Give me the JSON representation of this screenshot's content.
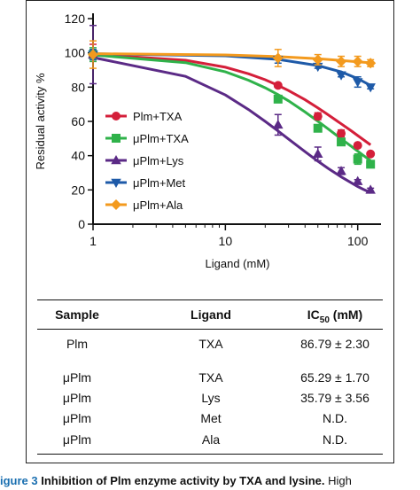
{
  "chart_data": {
    "type": "line",
    "title": "",
    "xlabel": "Ligand (mM)",
    "ylabel": "Residual activity %",
    "xscale": "log",
    "xlim": [
      1,
      150
    ],
    "ylim": [
      0,
      120
    ],
    "x_ticks": [
      "1",
      "10",
      "100"
    ],
    "y_ticks": [
      "0",
      "20",
      "40",
      "60",
      "80",
      "100",
      "120"
    ],
    "legend_position": "center-right",
    "series": [
      {
        "name": "Plm+TXA",
        "color": "#d41f3a",
        "marker": "circle",
        "x": [
          1,
          25,
          50,
          75,
          100,
          125
        ],
        "y": [
          100,
          81,
          63,
          53,
          46,
          41
        ],
        "err": [
          5,
          1,
          2,
          2,
          1,
          1
        ],
        "curve_x": [
          1,
          5,
          10,
          15,
          20,
          25,
          30,
          40,
          50,
          60,
          75,
          90,
          100,
          110,
          125
        ],
        "curve_y": [
          99.1,
          95.7,
          91.6,
          87.8,
          84.3,
          81.0,
          78.0,
          72.6,
          67.9,
          63.8,
          58.6,
          54.3,
          51.7,
          49.4,
          46.3
        ]
      },
      {
        "name": "μPlm+TXA",
        "color": "#2fb24a",
        "marker": "square",
        "x": [
          1,
          25,
          50,
          75,
          100,
          125
        ],
        "y": [
          99,
          73,
          56,
          48,
          38,
          35
        ],
        "err": [
          4,
          2,
          2,
          2,
          3,
          1
        ],
        "curve_x": [
          1,
          5,
          10,
          15,
          20,
          25,
          30,
          40,
          50,
          60,
          75,
          90,
          100,
          110,
          125
        ],
        "curve_y": [
          98.8,
          94.3,
          88.9,
          84.0,
          79.6,
          75.6,
          72.0,
          65.5,
          60.1,
          55.5,
          49.8,
          45.3,
          42.6,
          40.2,
          37.1
        ]
      },
      {
        "name": "μPlm+Lys",
        "color": "#5b2a86",
        "marker": "triangle-up",
        "x": [
          1,
          25,
          50,
          75,
          100,
          125
        ],
        "y": [
          99,
          58,
          41,
          31,
          25,
          20
        ],
        "err": [
          17,
          6,
          4,
          2,
          1,
          1
        ],
        "curve_x": [
          1,
          5,
          10,
          15,
          20,
          25,
          30,
          40,
          50,
          60,
          75,
          90,
          100,
          110,
          125
        ],
        "curve_y": [
          97.3,
          86.3,
          75.4,
          66.9,
          60.0,
          54.4,
          49.7,
          42.3,
          36.8,
          32.5,
          27.6,
          24.0,
          22.0,
          20.4,
          18.4
        ]
      },
      {
        "name": "μPlm+Met",
        "color": "#1e5aa8",
        "marker": "triangle-down",
        "x": [
          1,
          25,
          50,
          75,
          100,
          125
        ],
        "y": [
          99,
          96,
          92,
          87,
          83,
          80
        ],
        "err": [
          3,
          2,
          1,
          1,
          3,
          1
        ],
        "curve_x": [
          1,
          10,
          25,
          50,
          75,
          100,
          125
        ],
        "curve_y": [
          99.5,
          98.3,
          96.2,
          92.6,
          88.9,
          85.0,
          81.0
        ]
      },
      {
        "name": "μPlm+Ala",
        "color": "#f39a1e",
        "marker": "diamond",
        "x": [
          1,
          25,
          50,
          75,
          100,
          125
        ],
        "y": [
          99,
          97,
          96,
          95,
          95,
          94
        ],
        "err": [
          8,
          5,
          3,
          3,
          3,
          2
        ],
        "curve_x": [
          1,
          10,
          25,
          50,
          75,
          100,
          125
        ],
        "curve_y": [
          99.5,
          98.8,
          97.8,
          96.6,
          95.6,
          94.8,
          94.2
        ]
      }
    ]
  },
  "table": {
    "headers": [
      "Sample",
      "Ligand",
      "IC50 (mM)"
    ],
    "header_ic_main": "IC",
    "header_ic_sub": "50",
    "header_ic_unit": " (mM)",
    "rows": [
      [
        "Plm",
        "TXA",
        "86.79 ± 2.30"
      ],
      [
        "μPlm",
        "TXA",
        "65.29 ± 1.70"
      ],
      [
        "μPlm",
        "Lys",
        "35.79 ± 3.56"
      ],
      [
        "μPlm",
        "Met",
        "N.D."
      ],
      [
        "μPlm",
        "Ala",
        "N.D."
      ]
    ]
  },
  "caption": {
    "figure_label": "igure 3",
    "title_text": "Inhibition of Plm enzyme activity by TXA and lysine.",
    "trailing_text": " High"
  }
}
